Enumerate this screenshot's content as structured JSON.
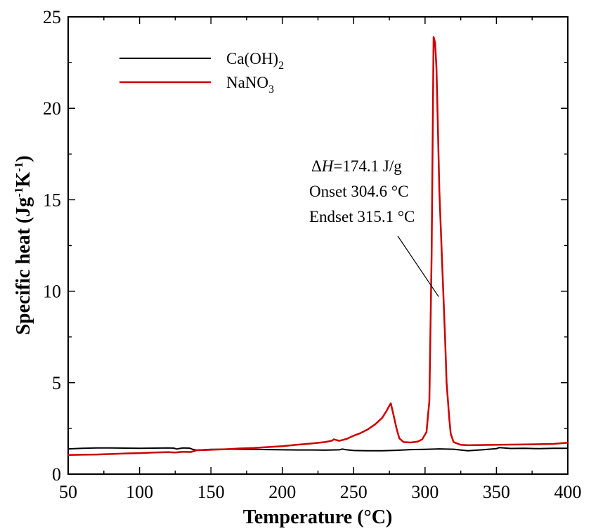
{
  "chart_data": {
    "type": "line",
    "xlabel": "Temperature (°C)",
    "ylabel_parts": {
      "main": "Specific heat (Jg",
      "sup1": "-1",
      "mid": "K",
      "sup2": "-1",
      "end": ")"
    },
    "xlim": [
      50,
      400
    ],
    "ylim": [
      0,
      25
    ],
    "xticks": [
      50,
      100,
      150,
      200,
      250,
      300,
      350,
      400
    ],
    "yticks": [
      0,
      5,
      10,
      15,
      20,
      25
    ],
    "grid": false,
    "legend_position": "top-left",
    "series": [
      {
        "name": "Ca(OH)2",
        "label_base": "Ca(OH)",
        "label_sub": "2",
        "color": "#000000",
        "x": [
          50,
          60,
          70,
          80,
          90,
          100,
          110,
          120,
          124,
          126,
          130,
          135,
          137,
          140,
          150,
          160,
          170,
          180,
          190,
          200,
          210,
          220,
          230,
          240,
          242,
          245,
          250,
          260,
          270,
          280,
          290,
          300,
          310,
          320,
          330,
          340,
          350,
          352,
          360,
          370,
          380,
          390,
          400
        ],
        "y": [
          1.38,
          1.41,
          1.43,
          1.43,
          1.42,
          1.41,
          1.42,
          1.43,
          1.42,
          1.37,
          1.43,
          1.42,
          1.36,
          1.31,
          1.35,
          1.36,
          1.36,
          1.35,
          1.34,
          1.33,
          1.32,
          1.32,
          1.31,
          1.33,
          1.37,
          1.33,
          1.29,
          1.28,
          1.28,
          1.3,
          1.34,
          1.35,
          1.38,
          1.36,
          1.28,
          1.33,
          1.39,
          1.45,
          1.4,
          1.41,
          1.39,
          1.41,
          1.41
        ]
      },
      {
        "name": "NaNO3",
        "label_base": "NaNO",
        "label_sub": "3",
        "color": "#cc0000",
        "x": [
          50,
          60,
          70,
          80,
          90,
          100,
          110,
          120,
          125,
          130,
          136,
          140,
          150,
          160,
          170,
          180,
          190,
          200,
          210,
          220,
          230,
          235,
          236,
          238,
          240,
          245,
          250,
          255,
          260,
          265,
          270,
          273,
          275,
          276,
          278,
          280,
          282,
          285,
          290,
          295,
          298,
          301,
          303,
          304.6,
          306,
          307,
          308,
          309,
          310,
          312,
          314,
          315.1,
          317,
          318,
          320,
          325,
          330,
          350,
          370,
          390,
          400
        ],
        "y": [
          1.05,
          1.06,
          1.07,
          1.1,
          1.13,
          1.15,
          1.18,
          1.2,
          1.18,
          1.22,
          1.21,
          1.3,
          1.33,
          1.36,
          1.4,
          1.43,
          1.48,
          1.53,
          1.6,
          1.67,
          1.75,
          1.83,
          1.9,
          1.86,
          1.82,
          1.92,
          2.1,
          2.25,
          2.45,
          2.72,
          3.08,
          3.45,
          3.75,
          3.87,
          3.2,
          2.5,
          1.95,
          1.75,
          1.73,
          1.78,
          1.9,
          2.3,
          4.0,
          12.0,
          23.9,
          23.6,
          22.2,
          19.0,
          15.5,
          11.5,
          7.5,
          5.0,
          3.0,
          2.2,
          1.75,
          1.6,
          1.58,
          1.6,
          1.62,
          1.65,
          1.72
        ]
      }
    ],
    "annotation": {
      "delta_symbol": "Δ",
      "h_symbol": "H",
      "enthalpy": "=174.1 J/g",
      "onset": "Onset  304.6 °C",
      "endset": "Endset 315.1 °C",
      "pointer_to": [
        309.5,
        9.7
      ]
    }
  }
}
